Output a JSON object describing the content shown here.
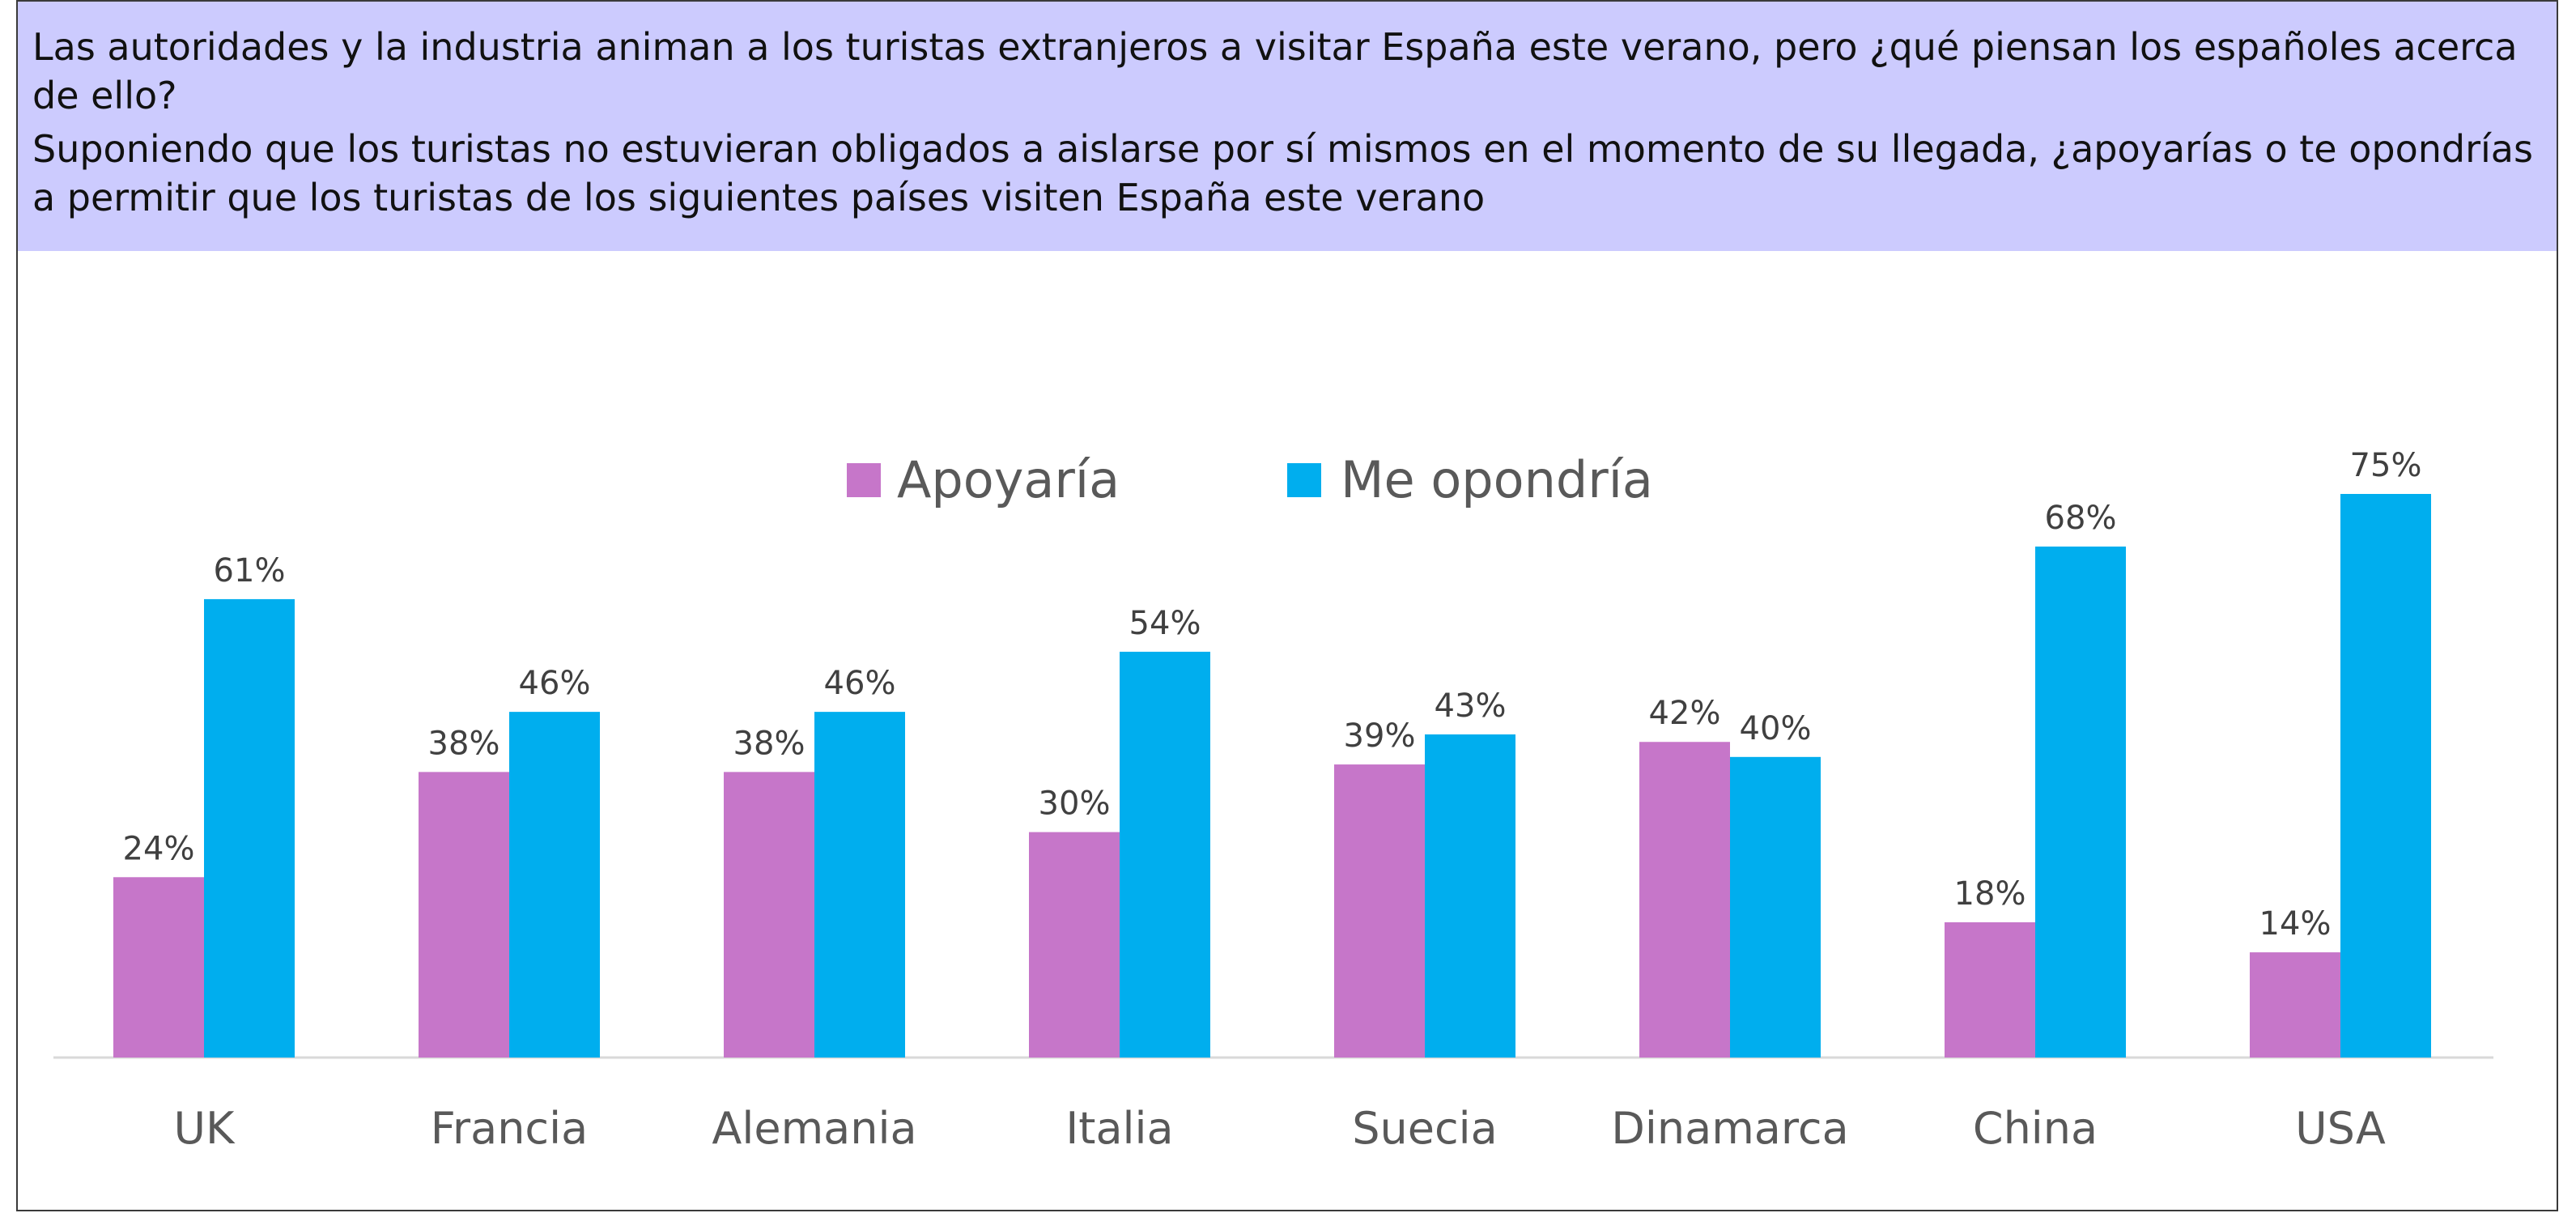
{
  "header": {
    "title": "Las autoridades y la industria animan a los turistas extranjeros a visitar España este verano, pero ¿qué piensan los españoles acerca de ello?",
    "subtitle": "Suponiendo que los turistas no estuvieran obligados a aislarse por sí mismos en el momento de su llegada, ¿apoyarías o te opondrías a permitir que los turistas de los siguientes países visiten España este verano"
  },
  "chart_data": {
    "type": "bar",
    "categories": [
      "UK",
      "Francia",
      "Alemania",
      "Italia",
      "Suecia",
      "Dinamarca",
      "China",
      "USA"
    ],
    "series": [
      {
        "name": "Apoyaría",
        "color": "#c676c9",
        "values": [
          24,
          38,
          38,
          30,
          39,
          42,
          18,
          14
        ]
      },
      {
        "name": "Me opondría",
        "color": "#00aeee",
        "values": [
          61,
          46,
          46,
          54,
          43,
          40,
          68,
          75
        ]
      }
    ],
    "value_suffix": "%",
    "ylim": [
      0,
      80
    ],
    "grid": false,
    "legend": "top-center"
  }
}
